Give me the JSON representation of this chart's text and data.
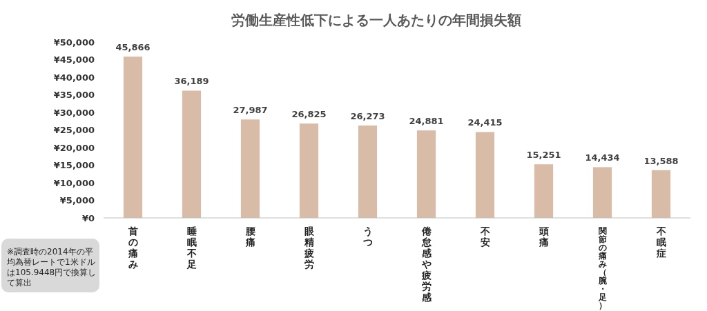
{
  "chart_data": {
    "type": "bar",
    "title": "労働生産性低下による一人あたりの年間損失額",
    "categories": [
      "首の痛み",
      "睡眠不足",
      "腰痛",
      "眼精疲労",
      "うつ",
      "倦怠感や疲労感",
      "不安",
      "頭痛",
      "関節の痛み（腕・足）",
      "不眠症"
    ],
    "values": [
      45866,
      36189,
      27987,
      26825,
      26273,
      24881,
      24415,
      15251,
      14434,
      13588
    ],
    "value_labels": [
      "45,866",
      "36,189",
      "27,987",
      "26,825",
      "26,273",
      "24,881",
      "24,415",
      "15,251",
      "14,434",
      "13,588"
    ],
    "color": "#d9bca8",
    "ylim": [
      0,
      50000
    ],
    "yticks": [
      {
        "value": 0,
        "label": "¥0"
      },
      {
        "value": 5000,
        "label": "¥5,000"
      },
      {
        "value": 10000,
        "label": "¥10,000"
      },
      {
        "value": 15000,
        "label": "¥15,000"
      },
      {
        "value": 20000,
        "label": "¥20,000"
      },
      {
        "value": 25000,
        "label": "¥25,000"
      },
      {
        "value": 30000,
        "label": "¥30,000"
      },
      {
        "value": 35000,
        "label": "¥35,000"
      },
      {
        "value": 40000,
        "label": "¥40,000"
      },
      {
        "value": 45000,
        "label": "¥45,000"
      },
      {
        "value": 50000,
        "label": "¥50,000"
      }
    ],
    "annotations": [
      "※調査時の2014年の平均為替レートで1米ドルは105.9448円で換算して算出"
    ]
  }
}
